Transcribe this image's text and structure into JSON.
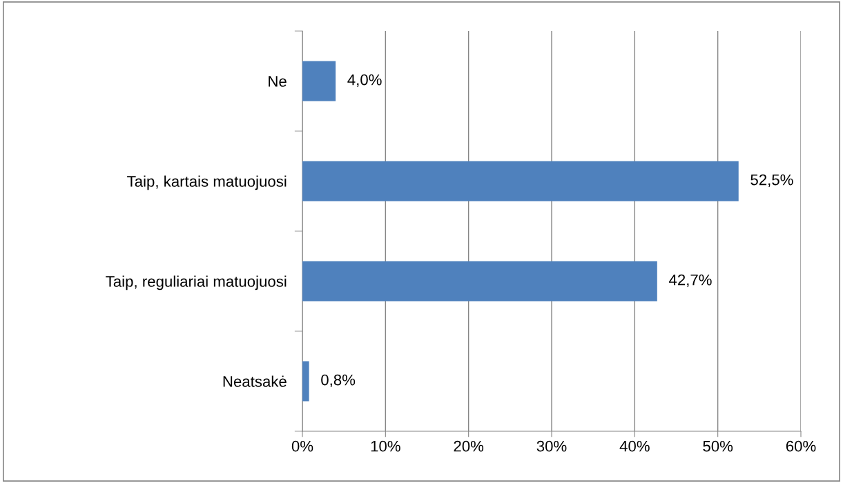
{
  "chart_data": {
    "type": "bar",
    "orientation": "horizontal",
    "categories": [
      "Ne",
      "Taip, kartais matuojuosi",
      "Taip, reguliariai matuojuosi",
      "Neatsakė"
    ],
    "values": [
      4.0,
      52.5,
      42.7,
      0.8
    ],
    "value_labels": [
      "4,0%",
      "52,5%",
      "42,7%",
      "0,8%"
    ],
    "color": "#4f81bd",
    "xlim": [
      0,
      60
    ],
    "xticks": [
      {
        "value": 0,
        "label": "0%"
      },
      {
        "value": 10,
        "label": "10%"
      },
      {
        "value": 20,
        "label": "20%"
      },
      {
        "value": 30,
        "label": "30%"
      },
      {
        "value": 40,
        "label": "40%"
      },
      {
        "value": 50,
        "label": "50%"
      },
      {
        "value": 60,
        "label": "60%"
      }
    ],
    "grid": "x"
  }
}
